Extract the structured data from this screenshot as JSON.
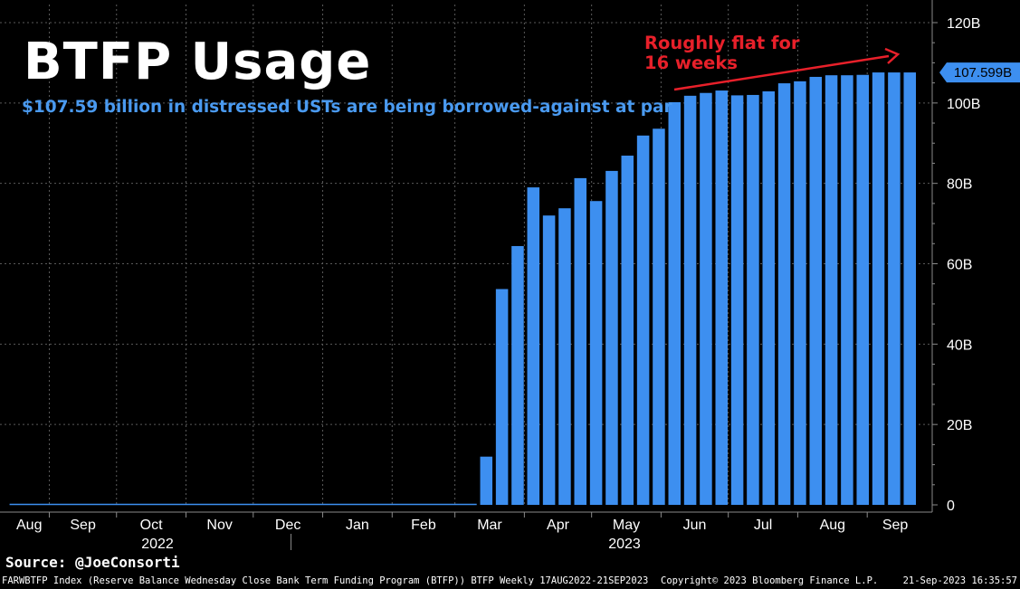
{
  "header": {
    "title": "BTFP Usage",
    "subtitle": "$107.59 billion in distressed USTs are being borrowed-against at par"
  },
  "annotation": {
    "line1": "Roughly flat for",
    "line2": "16 weeks"
  },
  "source": "Source: @JoeConsorti",
  "footer": {
    "left": "FARWBTFP Index (Reserve Balance Wednesday Close Bank Term Funding Program (BTFP)) BTFP  Weekly 17AUG2022-21SEP2023",
    "mid": "Copyright© 2023 Bloomberg Finance L.P.",
    "right": "21-Sep-2023 16:35:57"
  },
  "colors": {
    "bar": "#3d8ff0",
    "grid": "#5a5a5a",
    "axis": "#8a8a8a",
    "annotation": "#e8202a",
    "last_value_pill": "#3d8ff0"
  },
  "chart_data": {
    "type": "bar",
    "frequency": "weekly",
    "x_start": "2022-08-17",
    "x_end": "2023-09-21",
    "month_labels": [
      "Aug",
      "Sep",
      "Oct",
      "Nov",
      "Dec",
      "Jan",
      "Feb",
      "Mar",
      "Apr",
      "May",
      "Jun",
      "Jul",
      "Aug",
      "Sep"
    ],
    "year_labels": [
      "2022",
      "2023"
    ],
    "y_ticks": [
      0,
      20,
      40,
      60,
      80,
      100,
      120
    ],
    "y_tick_labels": [
      "0",
      "20B",
      "40B",
      "60B",
      "80B",
      "100B",
      "120B"
    ],
    "ylim": [
      0,
      120
    ],
    "y_unit": "B",
    "last_value_label": "107.599B",
    "last_value": 107.599,
    "leading_zero_weeks": 30,
    "values": [
      12.0,
      53.7,
      64.4,
      79.0,
      72.0,
      73.8,
      81.3,
      75.6,
      83.1,
      86.9,
      91.9,
      93.6,
      100.2,
      101.8,
      102.5,
      103.1,
      101.9,
      102.0,
      102.9,
      104.9,
      105.4,
      106.5,
      106.9,
      106.9,
      107.0,
      107.6,
      107.6,
      107.6
    ],
    "grid": true
  }
}
